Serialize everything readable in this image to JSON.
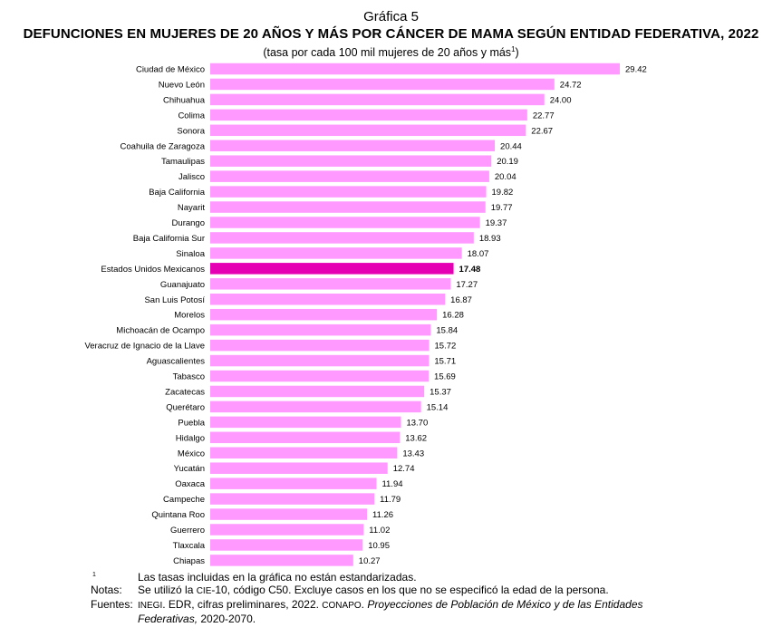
{
  "figure_label": "Gráfica 5",
  "title": "DEFUNCIONES EN MUJERES DE 20 AÑOS Y MÁS POR CÁNCER DE MAMA SEGÚN ENTIDAD FEDERATIVA, 2022",
  "subtitle": "(tasa por cada 100 mil mujeres de 20 años y más",
  "subtitle_sup": "1",
  "subtitle_end": ")",
  "colors": {
    "bar": "#ff99ff",
    "highlight": "#e600b4"
  },
  "chart_data": {
    "type": "bar",
    "orientation": "horizontal",
    "title": "DEFUNCIONES EN MUJERES DE 20 AÑOS Y MÁS POR CÁNCER DE MAMA SEGÚN ENTIDAD FEDERATIVA, 2022",
    "xlabel": "",
    "ylabel": "",
    "xlim": [
      0,
      30
    ],
    "grid": false,
    "highlight": "Estados Unidos Mexicanos",
    "categories": [
      "Ciudad de México",
      "Nuevo León",
      "Chihuahua",
      "Colima",
      "Sonora",
      "Coahuila de Zaragoza",
      "Tamaulipas",
      "Jalisco",
      "Baja California",
      "Nayarit",
      "Durango",
      "Baja California Sur",
      "Sinaloa",
      "Estados Unidos Mexicanos",
      "Guanajuato",
      "San Luis Potosí",
      "Morelos",
      "Michoacán de Ocampo",
      "Veracruz de Ignacio de la Llave",
      "Aguascalientes",
      "Tabasco",
      "Zacatecas",
      "Querétaro",
      "Puebla",
      "Hidalgo",
      "México",
      "Yucatán",
      "Oaxaca",
      "Campeche",
      "Quintana Roo",
      "Guerrero",
      "Tlaxcala",
      "Chiapas"
    ],
    "values": [
      29.42,
      24.72,
      24.0,
      22.77,
      22.67,
      20.44,
      20.19,
      20.04,
      19.82,
      19.77,
      19.37,
      18.93,
      18.07,
      17.48,
      17.27,
      16.87,
      16.28,
      15.84,
      15.72,
      15.71,
      15.69,
      15.37,
      15.14,
      13.7,
      13.62,
      13.43,
      12.74,
      11.94,
      11.79,
      11.26,
      11.02,
      10.95,
      10.27
    ],
    "value_labels": [
      "29.42",
      "24.72",
      "24.00",
      "22.77",
      "22.67",
      "20.44",
      "20.19",
      "20.04",
      "19.82",
      "19.77",
      "19.37",
      "18.93",
      "18.07",
      "17.48",
      "17.27",
      "16.87",
      "16.28",
      "15.84",
      "15.72",
      "15.71",
      "15.69",
      "15.37",
      "15.14",
      "13.70",
      "13.62",
      "13.43",
      "12.74",
      "11.94",
      "11.79",
      "11.26",
      "11.02",
      "10.95",
      "10.27"
    ]
  },
  "notes": {
    "footnote_mark": "1",
    "footnote_text": "Las tasas incluidas en la gráfica no están estandarizadas.",
    "notas_label": "Notas:",
    "notas_pre": "Se utilizó la ",
    "notas_sc": "CIE",
    "notas_post": "-10, código C50. Excluye casos en los que no se especificó la edad de la persona.",
    "fuentes_label": "Fuentes:",
    "fuentes_sc1": "INEGI",
    "fuentes_mid": ". EDR, cifras preliminares, 2022. ",
    "fuentes_sc2": "CONAPO",
    "fuentes_dot": ".",
    "fuentes_italic": "Proyecciones de Población de México y de las Entidades Federativas,",
    "fuentes_end": " 2020-2070."
  }
}
